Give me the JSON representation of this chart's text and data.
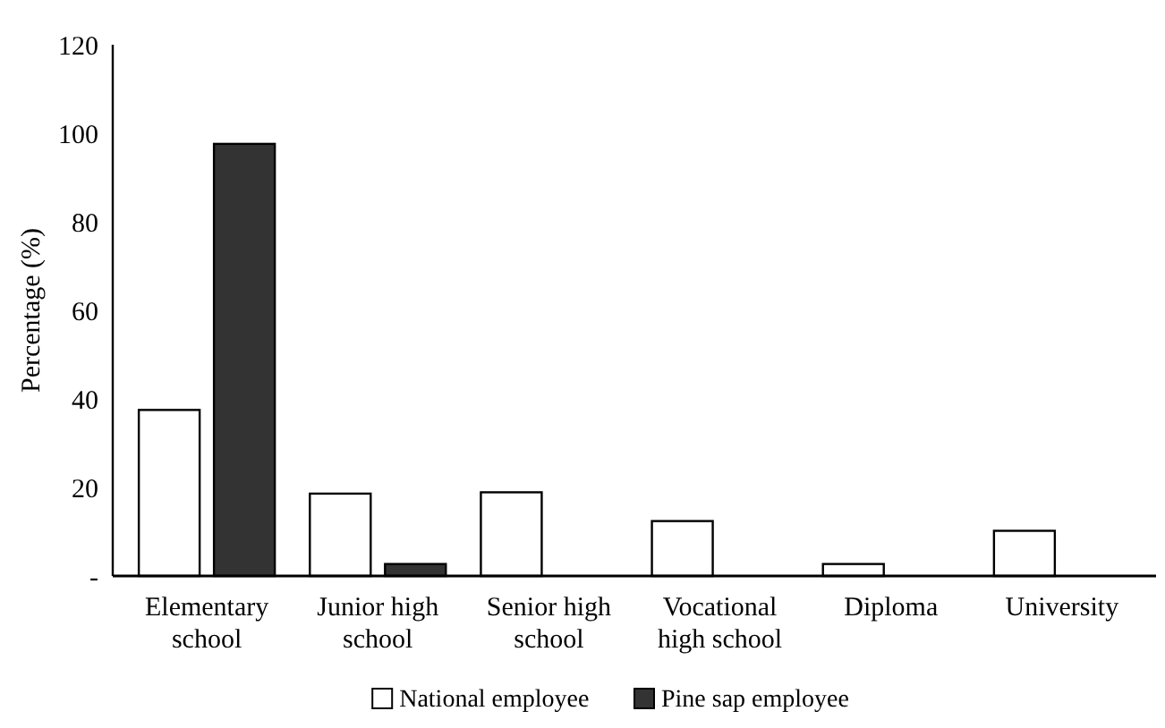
{
  "chart_data": {
    "type": "bar",
    "ylabel": "Percentage (%)",
    "categories": [
      "Elementary school",
      "Junior high school",
      "Senior high school",
      "Vocational high school",
      "Diploma",
      "University"
    ],
    "series": [
      {
        "name": "National employee",
        "color": "#ffffff",
        "values": [
          37.5,
          18.6,
          18.9,
          12.4,
          2.7,
          10.2
        ]
      },
      {
        "name": "Pine sap employee",
        "color": "#333333",
        "values": [
          97.6,
          2.7,
          null,
          null,
          null,
          null
        ]
      }
    ],
    "ylim": [
      0,
      120
    ],
    "yticks": [
      {
        "value": 0,
        "label": "-"
      },
      20,
      40,
      60,
      80,
      100,
      120
    ],
    "grid": false,
    "legend": "bottom"
  }
}
